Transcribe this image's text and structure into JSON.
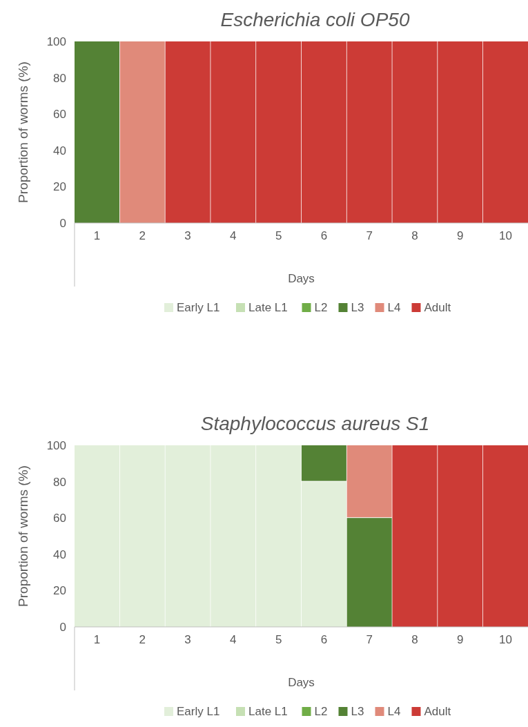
{
  "chart_data": [
    {
      "type": "bar",
      "stacked": true,
      "title": "Escherichia coli OP50",
      "xlabel": "Days",
      "ylabel": "Proportion of worms (%)",
      "categories": [
        "1",
        "2",
        "3",
        "4",
        "5",
        "6",
        "7",
        "8",
        "9",
        "10"
      ],
      "ylim": [
        0,
        100
      ],
      "yticks": [
        0,
        20,
        40,
        60,
        80,
        100
      ],
      "legend": "bottom",
      "series": [
        {
          "name": "Early L1",
          "color": "#e2efda",
          "values": [
            0,
            0,
            0,
            0,
            0,
            0,
            0,
            0,
            0,
            0
          ]
        },
        {
          "name": "Late L1",
          "color": "#c6e0b4",
          "values": [
            0,
            0,
            0,
            0,
            0,
            0,
            0,
            0,
            0,
            0
          ]
        },
        {
          "name": "L2",
          "color": "#70ad47",
          "values": [
            0,
            0,
            0,
            0,
            0,
            0,
            0,
            0,
            0,
            0
          ]
        },
        {
          "name": "L3",
          "color": "#548235",
          "values": [
            100,
            0,
            0,
            0,
            0,
            0,
            0,
            0,
            0,
            0
          ]
        },
        {
          "name": "L4",
          "color": "#e08a7a",
          "values": [
            0,
            100,
            0,
            0,
            0,
            0,
            0,
            0,
            0,
            0
          ]
        },
        {
          "name": "Adult",
          "color": "#cc3b36",
          "values": [
            0,
            0,
            100,
            100,
            100,
            100,
            100,
            100,
            100,
            100
          ]
        }
      ]
    },
    {
      "type": "bar",
      "stacked": true,
      "title": "Staphylococcus aureus S1",
      "xlabel": "Days",
      "ylabel": "Proportion of worms (%)",
      "categories": [
        "1",
        "2",
        "3",
        "4",
        "5",
        "6",
        "7",
        "8",
        "9",
        "10"
      ],
      "ylim": [
        0,
        100
      ],
      "yticks": [
        0,
        20,
        40,
        60,
        80,
        100
      ],
      "legend": "bottom",
      "series": [
        {
          "name": "Early L1",
          "color": "#e2efda",
          "values": [
            100,
            100,
            100,
            100,
            100,
            80,
            0,
            0,
            0,
            0
          ]
        },
        {
          "name": "Late L1",
          "color": "#c6e0b4",
          "values": [
            0,
            0,
            0,
            0,
            0,
            0,
            0,
            0,
            0,
            0
          ]
        },
        {
          "name": "L2",
          "color": "#70ad47",
          "values": [
            0,
            0,
            0,
            0,
            0,
            0,
            0,
            0,
            0,
            0
          ]
        },
        {
          "name": "L3",
          "color": "#548235",
          "values": [
            0,
            0,
            0,
            0,
            0,
            20,
            60,
            0,
            0,
            0
          ]
        },
        {
          "name": "L4",
          "color": "#e08a7a",
          "values": [
            0,
            0,
            0,
            0,
            0,
            0,
            40,
            0,
            0,
            0
          ]
        },
        {
          "name": "Adult",
          "color": "#cc3b36",
          "values": [
            0,
            0,
            0,
            0,
            0,
            0,
            0,
            100,
            100,
            100
          ]
        }
      ]
    }
  ]
}
